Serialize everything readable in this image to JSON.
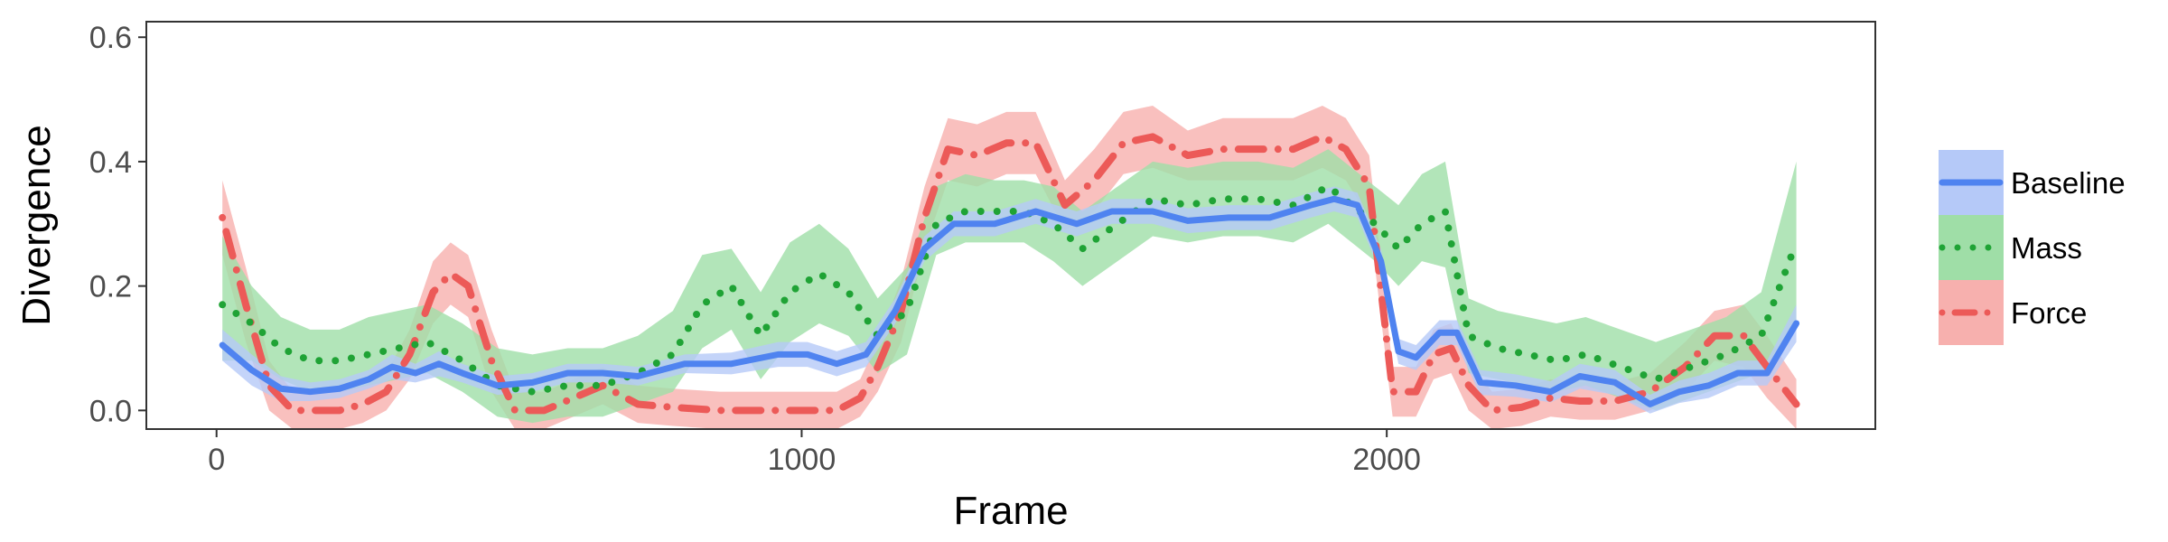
{
  "chart_data": {
    "type": "line",
    "title": "",
    "xlabel": "Frame",
    "ylabel": "Divergence",
    "xlim": [
      -120,
      2835
    ],
    "ylim": [
      -0.03,
      0.625
    ],
    "xticks": [
      0,
      1000,
      2000
    ],
    "xtick_labels": [
      "0",
      "1000",
      "2000"
    ],
    "yticks": [
      0.0,
      0.2,
      0.4,
      0.6
    ],
    "ytick_labels": [
      "0.0",
      "0.2",
      "0.4",
      "0.6"
    ],
    "grid": false,
    "legend_position": "right",
    "colors": {
      "Baseline": "#4f83f0",
      "Mass": "#1fa335",
      "Force": "#ec5a58"
    },
    "band_colors": {
      "Baseline": "#b5c9f8",
      "Mass": "#9fdea7",
      "Force": "#f7b0ae"
    },
    "series": [
      {
        "name": "Baseline",
        "line_style": "solid",
        "x": [
          10,
          60,
          110,
          160,
          210,
          260,
          300,
          340,
          380,
          420,
          480,
          540,
          600,
          660,
          720,
          800,
          880,
          960,
          1010,
          1060,
          1110,
          1160,
          1210,
          1260,
          1330,
          1400,
          1470,
          1530,
          1600,
          1660,
          1730,
          1800,
          1870,
          1910,
          1950,
          1990,
          2020,
          2050,
          2090,
          2120,
          2160,
          2220,
          2280,
          2330,
          2390,
          2450,
          2500,
          2550,
          2600,
          2650,
          2700
        ],
        "y": [
          0.105,
          0.065,
          0.035,
          0.03,
          0.035,
          0.05,
          0.07,
          0.06,
          0.075,
          0.06,
          0.04,
          0.045,
          0.06,
          0.06,
          0.055,
          0.075,
          0.075,
          0.09,
          0.09,
          0.075,
          0.09,
          0.16,
          0.26,
          0.3,
          0.3,
          0.32,
          0.3,
          0.32,
          0.32,
          0.305,
          0.31,
          0.31,
          0.33,
          0.34,
          0.33,
          0.24,
          0.095,
          0.085,
          0.125,
          0.125,
          0.045,
          0.04,
          0.03,
          0.055,
          0.045,
          0.01,
          0.03,
          0.04,
          0.06,
          0.06,
          0.14
        ],
        "lower": [
          0.08,
          0.04,
          0.015,
          0.015,
          0.02,
          0.035,
          0.05,
          0.045,
          0.055,
          0.045,
          0.025,
          0.03,
          0.045,
          0.045,
          0.04,
          0.06,
          0.058,
          0.07,
          0.07,
          0.055,
          0.07,
          0.14,
          0.24,
          0.28,
          0.28,
          0.3,
          0.28,
          0.3,
          0.3,
          0.285,
          0.29,
          0.29,
          0.31,
          0.32,
          0.31,
          0.22,
          0.075,
          0.065,
          0.105,
          0.105,
          0.025,
          0.022,
          0.013,
          0.035,
          0.025,
          -0.005,
          0.012,
          0.02,
          0.04,
          0.04,
          0.11
        ],
        "upper": [
          0.13,
          0.09,
          0.055,
          0.045,
          0.05,
          0.065,
          0.09,
          0.075,
          0.095,
          0.075,
          0.055,
          0.06,
          0.075,
          0.075,
          0.07,
          0.09,
          0.093,
          0.11,
          0.11,
          0.095,
          0.11,
          0.18,
          0.28,
          0.32,
          0.32,
          0.34,
          0.32,
          0.34,
          0.34,
          0.325,
          0.33,
          0.33,
          0.35,
          0.36,
          0.35,
          0.26,
          0.115,
          0.105,
          0.145,
          0.145,
          0.065,
          0.058,
          0.047,
          0.075,
          0.065,
          0.025,
          0.048,
          0.06,
          0.08,
          0.08,
          0.17
        ]
      },
      {
        "name": "Mass",
        "line_style": "dotted",
        "x": [
          10,
          60,
          110,
          160,
          210,
          260,
          310,
          360,
          420,
          480,
          540,
          600,
          660,
          720,
          780,
          830,
          880,
          930,
          980,
          1030,
          1080,
          1130,
          1180,
          1230,
          1280,
          1330,
          1380,
          1430,
          1480,
          1540,
          1600,
          1660,
          1720,
          1780,
          1840,
          1900,
          1940,
          1980,
          2020,
          2060,
          2100,
          2140,
          2190,
          2240,
          2290,
          2340,
          2400,
          2460,
          2520,
          2580,
          2640,
          2700
        ],
        "y": [
          0.17,
          0.14,
          0.1,
          0.08,
          0.08,
          0.09,
          0.1,
          0.11,
          0.08,
          0.04,
          0.03,
          0.04,
          0.04,
          0.06,
          0.09,
          0.17,
          0.2,
          0.12,
          0.19,
          0.22,
          0.19,
          0.12,
          0.16,
          0.3,
          0.32,
          0.32,
          0.32,
          0.3,
          0.26,
          0.3,
          0.34,
          0.33,
          0.34,
          0.34,
          0.33,
          0.36,
          0.33,
          0.3,
          0.26,
          0.3,
          0.32,
          0.12,
          0.1,
          0.09,
          0.08,
          0.09,
          0.07,
          0.05,
          0.07,
          0.09,
          0.12,
          0.27
        ],
        "lower": [
          0.08,
          0.08,
          0.05,
          0.03,
          0.03,
          0.04,
          0.05,
          0.06,
          0.03,
          -0.01,
          -0.02,
          -0.01,
          -0.01,
          0.01,
          0.03,
          0.1,
          0.13,
          0.05,
          0.11,
          0.14,
          0.12,
          0.06,
          0.09,
          0.25,
          0.27,
          0.27,
          0.27,
          0.24,
          0.2,
          0.24,
          0.28,
          0.27,
          0.28,
          0.28,
          0.27,
          0.3,
          0.27,
          0.24,
          0.2,
          0.24,
          0.23,
          0.06,
          0.05,
          0.04,
          0.03,
          0.04,
          0.02,
          0.0,
          0.02,
          0.04,
          0.06,
          0.14
        ],
        "upper": [
          0.28,
          0.2,
          0.15,
          0.13,
          0.13,
          0.15,
          0.16,
          0.17,
          0.14,
          0.1,
          0.09,
          0.1,
          0.1,
          0.12,
          0.16,
          0.25,
          0.26,
          0.19,
          0.27,
          0.3,
          0.26,
          0.18,
          0.23,
          0.36,
          0.38,
          0.37,
          0.37,
          0.36,
          0.32,
          0.36,
          0.4,
          0.39,
          0.4,
          0.4,
          0.39,
          0.42,
          0.39,
          0.36,
          0.33,
          0.38,
          0.4,
          0.18,
          0.16,
          0.15,
          0.14,
          0.15,
          0.13,
          0.11,
          0.13,
          0.15,
          0.19,
          0.4
        ]
      },
      {
        "name": "Force",
        "line_style": "dotdash",
        "x": [
          10,
          50,
          90,
          130,
          170,
          210,
          250,
          290,
          330,
          370,
          400,
          430,
          470,
          510,
          560,
          610,
          660,
          720,
          780,
          860,
          940,
          1000,
          1060,
          1100,
          1130,
          1170,
          1210,
          1250,
          1300,
          1350,
          1400,
          1450,
          1500,
          1550,
          1600,
          1660,
          1720,
          1780,
          1840,
          1890,
          1930,
          1970,
          2010,
          2050,
          2080,
          2110,
          2140,
          2180,
          2230,
          2280,
          2330,
          2390,
          2450,
          2510,
          2560,
          2610,
          2650,
          2700
        ],
        "y": [
          0.31,
          0.17,
          0.04,
          0.0,
          0.0,
          0.0,
          0.01,
          0.03,
          0.09,
          0.19,
          0.22,
          0.2,
          0.08,
          0.0,
          0.0,
          0.02,
          0.04,
          0.01,
          0.005,
          0.0,
          0.0,
          0.0,
          0.0,
          0.02,
          0.07,
          0.16,
          0.31,
          0.42,
          0.41,
          0.43,
          0.43,
          0.33,
          0.37,
          0.43,
          0.44,
          0.41,
          0.42,
          0.42,
          0.42,
          0.44,
          0.42,
          0.36,
          0.03,
          0.03,
          0.09,
          0.1,
          0.04,
          0.0,
          0.005,
          0.02,
          0.015,
          0.015,
          0.03,
          0.07,
          0.12,
          0.12,
          0.07,
          0.01
        ],
        "lower": [
          0.25,
          0.11,
          0.0,
          -0.03,
          -0.03,
          -0.03,
          -0.02,
          0.0,
          0.05,
          0.14,
          0.17,
          0.15,
          0.03,
          -0.03,
          -0.03,
          -0.01,
          0.01,
          -0.02,
          -0.025,
          -0.03,
          -0.03,
          -0.03,
          -0.03,
          -0.01,
          0.03,
          0.11,
          0.26,
          0.37,
          0.36,
          0.38,
          0.38,
          0.29,
          0.32,
          0.38,
          0.39,
          0.37,
          0.37,
          0.37,
          0.37,
          0.39,
          0.37,
          0.31,
          -0.01,
          -0.01,
          0.05,
          0.06,
          0.0,
          -0.03,
          -0.025,
          -0.01,
          -0.015,
          -0.015,
          0.0,
          0.03,
          0.08,
          0.07,
          0.02,
          -0.03
        ],
        "upper": [
          0.37,
          0.23,
          0.08,
          0.03,
          0.03,
          0.03,
          0.04,
          0.06,
          0.13,
          0.24,
          0.27,
          0.25,
          0.13,
          0.03,
          0.03,
          0.05,
          0.07,
          0.04,
          0.035,
          0.03,
          0.03,
          0.03,
          0.03,
          0.05,
          0.11,
          0.21,
          0.36,
          0.47,
          0.46,
          0.48,
          0.48,
          0.37,
          0.42,
          0.48,
          0.49,
          0.45,
          0.47,
          0.47,
          0.47,
          0.49,
          0.47,
          0.41,
          0.07,
          0.07,
          0.13,
          0.14,
          0.08,
          0.03,
          0.035,
          0.05,
          0.045,
          0.045,
          0.06,
          0.11,
          0.16,
          0.17,
          0.12,
          0.05
        ]
      }
    ]
  }
}
